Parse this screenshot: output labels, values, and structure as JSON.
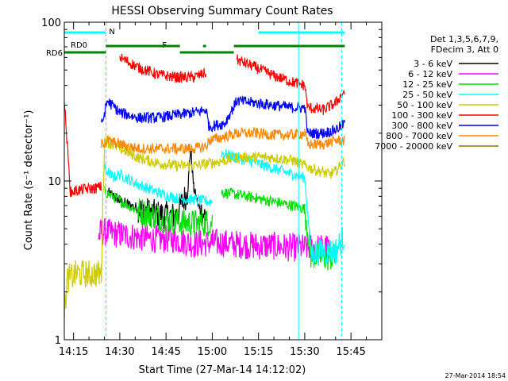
{
  "chart_data": {
    "type": "line",
    "title": "HESSI Observing Summary Count Rates",
    "xlabel": "Start Time (27-Mar-14 14:12:02)",
    "ylabel": "Count Rate (s⁻¹ detector⁻¹)",
    "x_unit": "minutes after 14:12:02",
    "x_tick_labels": [
      "14:15",
      "14:30",
      "14:45",
      "15:00",
      "15:15",
      "15:30",
      "15:45"
    ],
    "x_tick_values": [
      3,
      18,
      33,
      48,
      63,
      78,
      93
    ],
    "xlim": [
      0,
      103
    ],
    "y_scale": "log",
    "ylim": [
      1,
      100
    ],
    "y_tick_labels": [
      "1",
      "10",
      "100"
    ],
    "legend_header": [
      "Det 1,3,5,6,7,9,",
      "FDecim 3, Att 0"
    ],
    "legend_position": "top-right",
    "series": [
      {
        "name": "3 - 6 keV",
        "color": "#000000",
        "x": [
          0,
          13,
          14,
          17,
          18,
          24,
          30,
          36,
          40,
          41,
          42,
          44,
          46,
          50,
          52
        ],
        "y": [
          null,
          null,
          8.5,
          7.8,
          7.5,
          6.7,
          6.2,
          6.0,
          8.5,
          16.0,
          9.0,
          6.5,
          6.0,
          null,
          null
        ]
      },
      {
        "name": "6 - 12 keV",
        "color": "#ff00ff",
        "x": [
          11,
          12,
          18,
          25,
          30,
          36,
          42,
          48,
          56,
          62,
          68,
          74,
          80,
          86,
          90
        ],
        "y": [
          4.4,
          4.8,
          4.6,
          4.4,
          4.3,
          4.3,
          4.0,
          4.1,
          4.0,
          3.9,
          3.9,
          3.8,
          3.8,
          3.8,
          null
        ]
      },
      {
        "name": "12 - 25 keV",
        "color": "#00dd00",
        "x": [
          10,
          13,
          18,
          24,
          30,
          36,
          42,
          48,
          50,
          51,
          56,
          62,
          68,
          74,
          78,
          80,
          85,
          88
        ],
        "y": [
          null,
          8.6,
          7.5,
          6.5,
          6.0,
          5.6,
          5.4,
          5.5,
          null,
          8.5,
          8.2,
          7.8,
          7.4,
          7.0,
          6.7,
          3.4,
          3.3,
          3.3
        ]
      },
      {
        "name": "25 - 50 keV",
        "color": "#00ffff",
        "x": [
          12,
          13,
          16,
          18,
          24,
          30,
          36,
          42,
          48,
          50,
          51,
          56,
          62,
          68,
          74,
          78,
          80,
          88,
          91
        ],
        "y": [
          null,
          12.0,
          10.5,
          11.0,
          9.5,
          8.5,
          7.8,
          7.6,
          7.4,
          null,
          15.0,
          14.0,
          13.0,
          12.0,
          11.0,
          10.5,
          3.6,
          3.6,
          4.6
        ]
      },
      {
        "name": "50 - 100 keV",
        "color": "#cccc00",
        "x": [
          0,
          1,
          4,
          8,
          12,
          13,
          18,
          24,
          30,
          36,
          42,
          48,
          56,
          62,
          68,
          74,
          80,
          86,
          88,
          91
        ],
        "y": [
          1.5,
          2.4,
          2.6,
          2.6,
          2.6,
          18.0,
          16.0,
          14.0,
          13.0,
          12.5,
          12.5,
          13.0,
          14.0,
          14.2,
          14.0,
          13.5,
          12.0,
          11.0,
          11.5,
          13.5
        ]
      },
      {
        "name": "100 - 300 keV",
        "color": "#ff0000",
        "x": [
          0,
          2,
          5,
          10,
          12,
          13,
          15,
          18,
          24,
          30,
          36,
          42,
          46,
          47,
          56,
          62,
          68,
          74,
          78,
          79,
          84,
          88,
          91
        ],
        "y": [
          32,
          8.5,
          8.8,
          9.0,
          9.2,
          null,
          null,
          60,
          52,
          47,
          45,
          45,
          48,
          null,
          58,
          52,
          46,
          42,
          40,
          29,
          28,
          31,
          37
        ]
      },
      {
        "name": "300 - 800 keV",
        "color": "#0000ff",
        "x": [
          0,
          4,
          8,
          12,
          14,
          18,
          24,
          30,
          36,
          42,
          46,
          47,
          52,
          56,
          62,
          68,
          74,
          78,
          79,
          84,
          88,
          91
        ],
        "y": [
          null,
          null,
          null,
          22,
          32,
          27,
          25,
          25,
          26,
          27,
          28,
          22,
          23,
          32,
          31,
          30,
          29,
          29,
          20,
          20,
          21,
          23
        ]
      },
      {
        "name": "800 - 7000 keV",
        "color": "#ff8800",
        "x": [
          0,
          4,
          8,
          12,
          14,
          18,
          24,
          30,
          36,
          42,
          46,
          47,
          52,
          56,
          62,
          68,
          74,
          78,
          79,
          84,
          88,
          91
        ],
        "y": [
          null,
          null,
          null,
          17,
          18,
          17,
          16,
          16,
          16,
          16,
          16.5,
          18,
          19,
          20,
          20,
          19.5,
          19.5,
          20,
          17,
          17,
          18,
          18
        ]
      },
      {
        "name": "7000 - 20000 keV",
        "color": "#8b7500",
        "x": [
          0,
          90
        ],
        "y": [
          null,
          null
        ]
      }
    ],
    "annotations": [
      {
        "label": "N",
        "color": "#00ffff",
        "row": "top",
        "segments": [
          [
            0,
            13.5
          ],
          [
            63,
            78
          ],
          [
            78,
            91
          ]
        ]
      },
      {
        "label": "F",
        "color": "#ff0000",
        "row": "middle",
        "segments": [
          [
            34,
            37
          ]
        ]
      },
      {
        "label": "RD0",
        "color": "#008000",
        "row": "middle",
        "segments": [
          [
            13.5,
            37.5
          ],
          [
            45,
            46
          ],
          [
            55,
            91
          ]
        ]
      },
      {
        "label": "RD6",
        "color": "#008000",
        "row": "bottom",
        "segments": [
          [
            0,
            13.5
          ],
          [
            37.5,
            46
          ],
          [
            46,
            55
          ]
        ]
      }
    ],
    "vertical_markers": [
      {
        "x": 13.5,
        "style": "dashed",
        "color": "#00ffff"
      },
      {
        "x": 76,
        "style": "solid",
        "color": "#00ffff"
      },
      {
        "x": 90,
        "style": "dashed",
        "color": "#00ffff"
      }
    ]
  },
  "footer": {
    "timestamp": "27-Mar-2014 18:54"
  }
}
